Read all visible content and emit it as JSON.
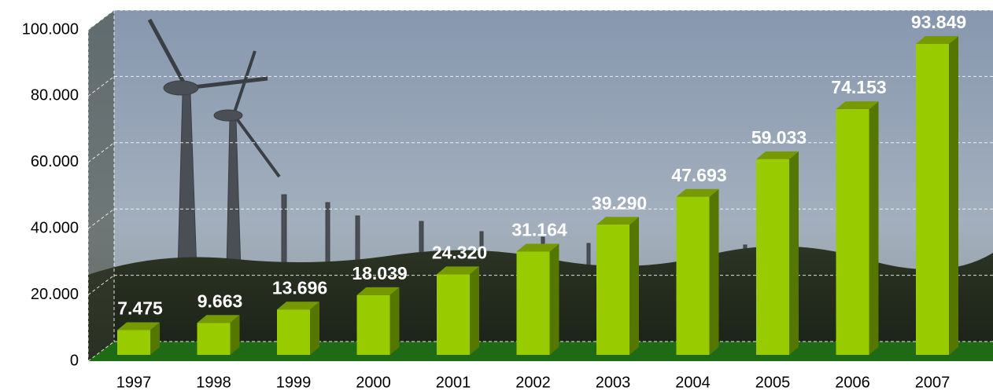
{
  "chart_data": {
    "type": "bar",
    "categories": [
      "1997",
      "1998",
      "1999",
      "2000",
      "2001",
      "2002",
      "2003",
      "2004",
      "2005",
      "2006",
      "2007"
    ],
    "values": [
      7475,
      9663,
      13696,
      18039,
      24320,
      31164,
      39290,
      47693,
      59033,
      74153,
      93849
    ],
    "value_labels": [
      "7.475",
      "9.663",
      "13.696",
      "18.039",
      "24.320",
      "31.164",
      "39.290",
      "47.693",
      "59.033",
      "74.153",
      "93.849"
    ],
    "color": "#99cc00",
    "ylim": [
      0,
      100000
    ],
    "yticks": [
      0,
      {
        "value": 20000,
        "label": "20.000"
      },
      {
        "value": 40000,
        "label": "40.000"
      },
      {
        "value": 60000,
        "label": "60.000"
      },
      {
        "value": 80000,
        "label": "80.000"
      },
      {
        "value": 100000,
        "label": "100.000"
      }
    ],
    "grid": true
  }
}
